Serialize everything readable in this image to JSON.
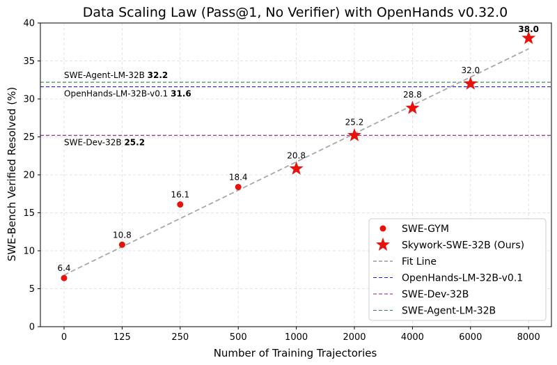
{
  "chart_data": {
    "type": "scatter",
    "title": "Data Scaling Law (Pass@1, No Verifier) with OpenHands v0.32.0",
    "xlabel": "Number of Training Trajectories",
    "ylabel": "SWE-Bench Verified Resolved (%)",
    "categories": [
      "0",
      "125",
      "250",
      "500",
      "1000",
      "2000",
      "4000",
      "6000",
      "8000"
    ],
    "ylim": [
      0,
      40
    ],
    "yticks": [
      "0",
      "5",
      "10",
      "15",
      "20",
      "25",
      "30",
      "35",
      "40"
    ],
    "grid": true,
    "legend_position": "bottom-right",
    "series": [
      {
        "name": "SWE-GYM",
        "marker": "circle",
        "color": "#e8120c",
        "x": [
          "0",
          "125",
          "250",
          "500"
        ],
        "values": [
          6.4,
          10.8,
          16.1,
          18.4
        ],
        "labels": [
          "6.4",
          "10.8",
          "16.1",
          "18.4"
        ]
      },
      {
        "name": "Skywork-SWE-32B (Ours)",
        "marker": "star",
        "color": "#e8120c",
        "x": [
          "1000",
          "2000",
          "4000",
          "6000",
          "8000"
        ],
        "values": [
          20.8,
          25.2,
          28.8,
          32.0,
          38.0
        ],
        "labels": [
          "20.8",
          "25.2",
          "28.8",
          "32.0",
          "38.0"
        ]
      }
    ],
    "fit_line": {
      "name": "Fit Line",
      "color": "#a8a8a8",
      "start_y": 6.8,
      "end_y": 36.6
    },
    "reference_lines": [
      {
        "name": "OpenHands-LM-32B-v0.1",
        "text": "OpenHands-LM-32B-v0.1",
        "value": 31.6,
        "value_text": "31.6",
        "color": "#1f1fd1"
      },
      {
        "name": "SWE-Dev-32B",
        "text": "SWE-Dev-32B",
        "value": 25.2,
        "value_text": "25.2",
        "color": "#8b1a8b"
      },
      {
        "name": "SWE-Agent-LM-32B",
        "text": "SWE-Agent-LM-32B",
        "value": 32.2,
        "value_text": "32.2",
        "color": "#2e7d4f"
      }
    ]
  }
}
